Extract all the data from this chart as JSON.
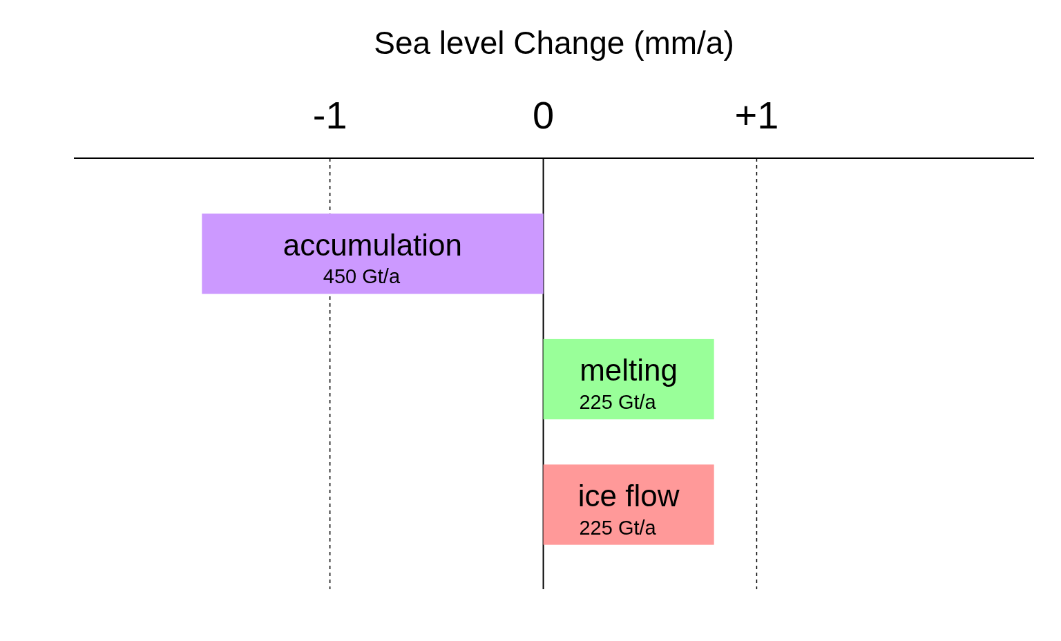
{
  "chart_data": {
    "type": "bar",
    "orientation": "horizontal",
    "xlabel": "Sea level Change (mm/a)",
    "categories": [
      "accumulation",
      "melting",
      "ice flow"
    ],
    "values": [
      -1.6,
      0.8,
      0.8
    ],
    "colors": [
      "#cc99ff",
      "#99ff99",
      "#ff9999"
    ],
    "annotations": [
      "450 Gt/a",
      "225 Gt/a",
      "225 Gt/a"
    ],
    "xlim": [
      -2.2,
      2.3
    ],
    "xticks": [
      -1,
      0,
      {
        "value": 1,
        "label": "+1"
      }
    ],
    "grid": "x",
    "line_style": "dashed",
    "legend": false
  }
}
